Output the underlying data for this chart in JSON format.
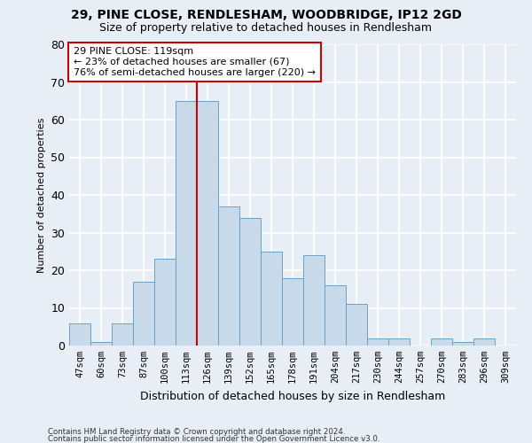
{
  "title1": "29, PINE CLOSE, RENDLESHAM, WOODBRIDGE, IP12 2GD",
  "title2": "Size of property relative to detached houses in Rendlesham",
  "xlabel": "Distribution of detached houses by size in Rendlesham",
  "ylabel": "Number of detached properties",
  "footnote1": "Contains HM Land Registry data © Crown copyright and database right 2024.",
  "footnote2": "Contains public sector information licensed under the Open Government Licence v3.0.",
  "bin_labels": [
    "47sqm",
    "60sqm",
    "73sqm",
    "87sqm",
    "100sqm",
    "113sqm",
    "126sqm",
    "139sqm",
    "152sqm",
    "165sqm",
    "178sqm",
    "191sqm",
    "204sqm",
    "217sqm",
    "230sqm",
    "244sqm",
    "257sqm",
    "270sqm",
    "283sqm",
    "296sqm",
    "309sqm"
  ],
  "bar_heights": [
    6,
    1,
    6,
    17,
    23,
    65,
    65,
    37,
    34,
    25,
    18,
    24,
    16,
    11,
    2,
    2,
    0,
    2,
    1,
    2,
    0
  ],
  "bar_color": "#c8d9ea",
  "bar_edge_color": "#6aa3c8",
  "background_color": "#e8eef5",
  "grid_color": "#ffffff",
  "red_line_x": 5.5,
  "red_line_color": "#cc0000",
  "annotation_text": "29 PINE CLOSE: 119sqm\n← 23% of detached houses are smaller (67)\n76% of semi-detached houses are larger (220) →",
  "annotation_box_color": "#ffffff",
  "annotation_box_edge": "#cc0000",
  "ylim": [
    0,
    80
  ],
  "yticks": [
    0,
    10,
    20,
    30,
    40,
    50,
    60,
    70,
    80
  ]
}
